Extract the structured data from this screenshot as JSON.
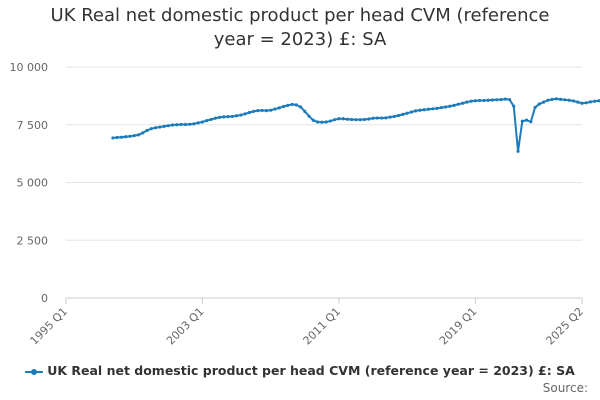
{
  "chart_data": {
    "type": "line",
    "title_line1": "UK Real net domestic product per head CVM (reference",
    "title_line2": "year = 2023) £: SA",
    "xlabel": "",
    "ylabel": "",
    "ylim": [
      0,
      10000
    ],
    "yticks": [
      0,
      2500,
      5000,
      7500,
      10000
    ],
    "ytick_labels": [
      "0",
      "2 500",
      "5 000",
      "7 500",
      "10 000"
    ],
    "xtick_labels": [
      "1995 Q1",
      "2003 Q1",
      "2011 Q1",
      "2019 Q1",
      "2025 Q2"
    ],
    "grid": true,
    "legend_position": "bottom",
    "color": "#1c7cbb",
    "series": [
      {
        "name": "UK Real net domestic product per head CVM (reference year = 2023) £: SA",
        "start": "1997 Q4",
        "values": [
          6930,
          6950,
          6960,
          6980,
          7000,
          7030,
          7060,
          7150,
          7250,
          7330,
          7370,
          7400,
          7430,
          7460,
          7490,
          7500,
          7510,
          7510,
          7520,
          7540,
          7580,
          7620,
          7680,
          7730,
          7780,
          7820,
          7840,
          7850,
          7860,
          7890,
          7920,
          7970,
          8030,
          8080,
          8110,
          8120,
          8110,
          8130,
          8180,
          8230,
          8290,
          8340,
          8380,
          8360,
          8270,
          8080,
          7870,
          7690,
          7620,
          7610,
          7620,
          7660,
          7720,
          7760,
          7760,
          7740,
          7730,
          7720,
          7720,
          7730,
          7750,
          7780,
          7790,
          7790,
          7800,
          7830,
          7860,
          7900,
          7950,
          8000,
          8050,
          8100,
          8130,
          8150,
          8170,
          8190,
          8210,
          8240,
          8270,
          8300,
          8340,
          8390,
          8430,
          8480,
          8520,
          8540,
          8550,
          8550,
          8560,
          8570,
          8580,
          8590,
          8610,
          8590,
          8300,
          6350,
          7650,
          7700,
          7630,
          8250,
          8400,
          8480,
          8560,
          8600,
          8620,
          8600,
          8580,
          8560,
          8530,
          8480,
          8430,
          8450,
          8490,
          8520,
          8540,
          8560,
          8570,
          8590,
          8610
        ]
      }
    ]
  },
  "legend": {
    "label": "UK Real net domestic product per head CVM (reference year = 2023) £: SA"
  },
  "footer": {
    "source_label": "Source:"
  }
}
